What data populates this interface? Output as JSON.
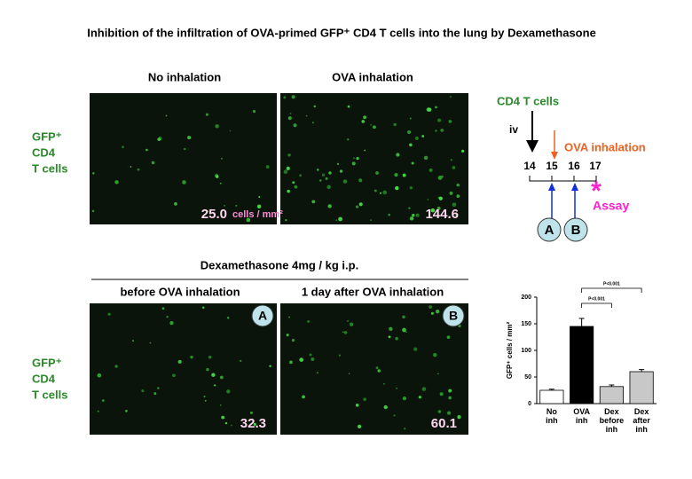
{
  "title": "Inhibition of the infiltration of OVA-primed GFP⁺ CD4 T cells into the lung by Dexamethasone",
  "row_label": [
    "GFP⁺",
    "CD4",
    "T cells"
  ],
  "top": {
    "panels": [
      {
        "label": "No inhalation",
        "count": "25.0",
        "unit": "cells / mm²"
      },
      {
        "label": "OVA inhalation",
        "count": "144.6"
      }
    ]
  },
  "bottom": {
    "treatment": "Dexamethasone 4mg / kg i.p.",
    "panels": [
      {
        "label": "before OVA inhalation",
        "count": "32.3",
        "badge": "A"
      },
      {
        "label": "1 day after OVA inhalation",
        "count": "60.1",
        "badge": "B"
      }
    ]
  },
  "timeline": {
    "cells": "CD4 T cells",
    "route": "iv",
    "challenge": "OVA inhalation",
    "days": [
      "14",
      "15",
      "16",
      "17"
    ],
    "points": [
      "A",
      "B"
    ],
    "assay": "Assay",
    "asterisk": "*"
  },
  "chart_data": {
    "type": "bar",
    "categories": [
      "No\ninh",
      "OVA\ninh",
      "Dex\nbefore\ninh",
      "Dex\nafter\ninh"
    ],
    "values": [
      25,
      145,
      32,
      60
    ],
    "errors": [
      2,
      15,
      3,
      4
    ],
    "colors": [
      "#ffffff",
      "#000000",
      "#c8c8c8",
      "#c8c8c8"
    ],
    "ylabel": "GFP⁺ cells / mm²",
    "ylim": [
      0,
      200
    ],
    "yticks": [
      0,
      50,
      100,
      150,
      200
    ],
    "annotations": [
      "P<0.001",
      "P<0.001"
    ]
  }
}
